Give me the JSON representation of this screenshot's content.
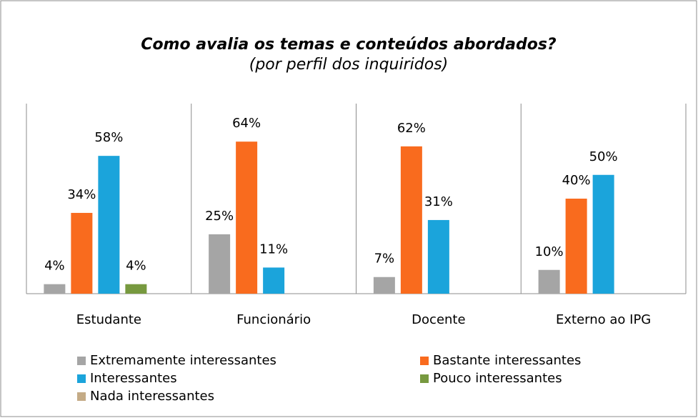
{
  "chart_data": {
    "type": "bar",
    "title": "Como avalia os temas e conteúdos abordados?",
    "subtitle": "(por perfil dos inquiridos)",
    "categories": [
      "Estudante",
      "Funcionário",
      "Docente",
      "Externo ao IPG"
    ],
    "ylim": [
      0,
      80
    ],
    "series": [
      {
        "name": "Extremamente interessantes",
        "color": "#a5a5a5",
        "values": [
          4,
          25,
          7,
          10
        ],
        "value_labels": [
          "4%",
          "25%",
          "7%",
          "10%"
        ]
      },
      {
        "name": "Bastante interessantes",
        "color": "#f96b1e",
        "values": [
          34,
          64,
          62,
          40
        ],
        "value_labels": [
          "34%",
          "64%",
          "62%",
          "40%"
        ]
      },
      {
        "name": "Interessantes",
        "color": "#1ba4db",
        "values": [
          58,
          11,
          31,
          50
        ],
        "value_labels": [
          "58%",
          "11%",
          "31%",
          "50%"
        ]
      },
      {
        "name": "Pouco interessantes",
        "color": "#77993f",
        "values": [
          4,
          null,
          null,
          null
        ],
        "value_labels": [
          "4%",
          null,
          null,
          null
        ]
      },
      {
        "name": "Nada interessantes",
        "color": "#c4ab86",
        "values": [
          null,
          null,
          null,
          null
        ],
        "value_labels": [
          null,
          null,
          null,
          null
        ]
      }
    ],
    "legend": "bottom"
  }
}
